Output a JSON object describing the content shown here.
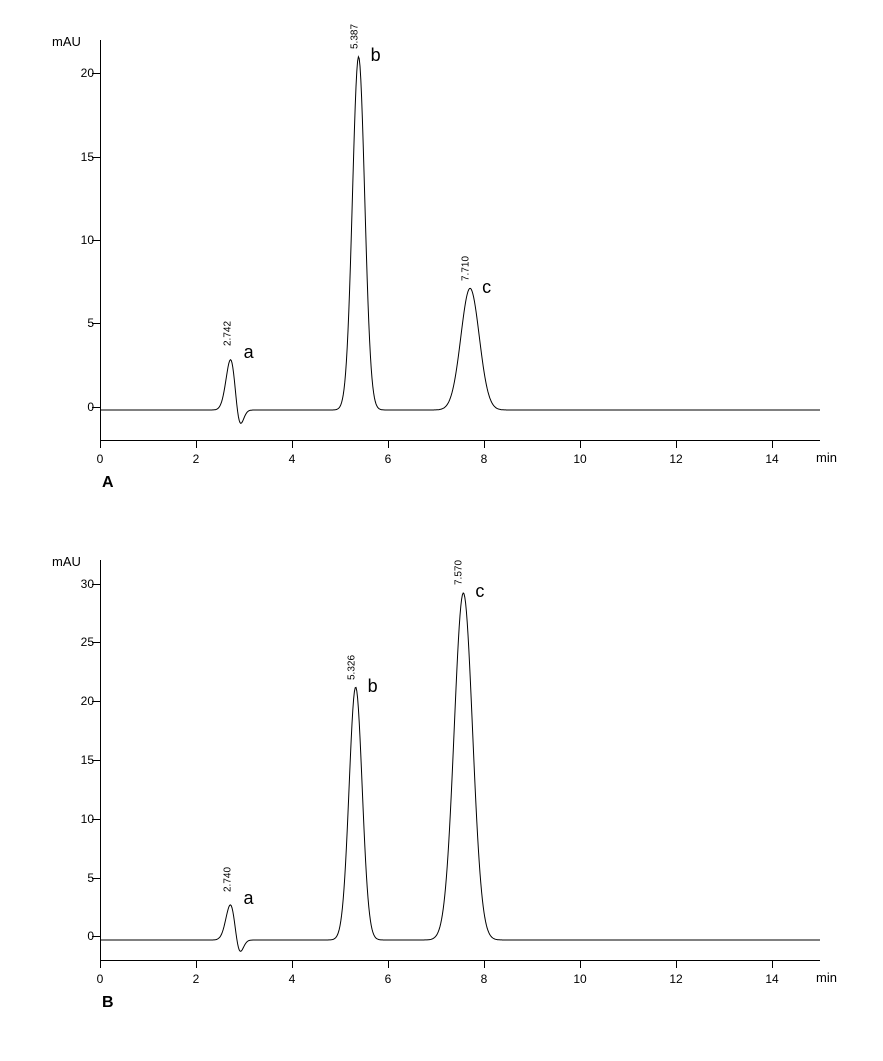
{
  "figure": {
    "background_color": "#ffffff",
    "axis_color": "#000000",
    "line_color": "#000000",
    "line_width": 1,
    "font_family": "Arial",
    "tick_fontsize": 12,
    "unit_fontsize": 13,
    "panel_label_fontsize": 16,
    "rt_label_fontsize": 10,
    "peak_letter_fontsize": 18
  },
  "panels": [
    {
      "id": "A",
      "letter": "A",
      "type": "chromatogram",
      "y_unit_label": "mAU",
      "x_unit_label": "min",
      "xlim": [
        0,
        15
      ],
      "ylim": [
        -2,
        22
      ],
      "x_ticks": [
        0,
        2,
        4,
        6,
        8,
        10,
        12,
        14
      ],
      "y_ticks": [
        0,
        5,
        10,
        15,
        20
      ],
      "peaks": [
        {
          "rt": 2.742,
          "rt_label": "2.742",
          "letter": "a",
          "height": 3.4,
          "neg": -1.8,
          "width": 0.25
        },
        {
          "rt": 5.387,
          "rt_label": "5.387",
          "letter": "b",
          "height": 21.2,
          "neg": 0,
          "width": 0.3
        },
        {
          "rt": 7.71,
          "rt_label": "7.710",
          "letter": "c",
          "height": 7.3,
          "neg": 0,
          "width": 0.45
        }
      ],
      "baseline": -0.2
    },
    {
      "id": "B",
      "letter": "B",
      "type": "chromatogram",
      "y_unit_label": "mAU",
      "x_unit_label": "min",
      "xlim": [
        0,
        15
      ],
      "ylim": [
        -2,
        32
      ],
      "x_ticks": [
        0,
        2,
        4,
        6,
        8,
        10,
        12,
        14
      ],
      "y_ticks": [
        0,
        5,
        10,
        15,
        20,
        25,
        30
      ],
      "peaks": [
        {
          "rt": 2.74,
          "rt_label": "2.740",
          "letter": "a",
          "height": 3.4,
          "neg": -2.0,
          "width": 0.25
        },
        {
          "rt": 5.326,
          "rt_label": "5.326",
          "letter": "b",
          "height": 21.5,
          "neg": 0,
          "width": 0.32
        },
        {
          "rt": 7.57,
          "rt_label": "7.570",
          "letter": "c",
          "height": 29.5,
          "neg": 0,
          "width": 0.45
        }
      ],
      "baseline": -0.3
    }
  ]
}
